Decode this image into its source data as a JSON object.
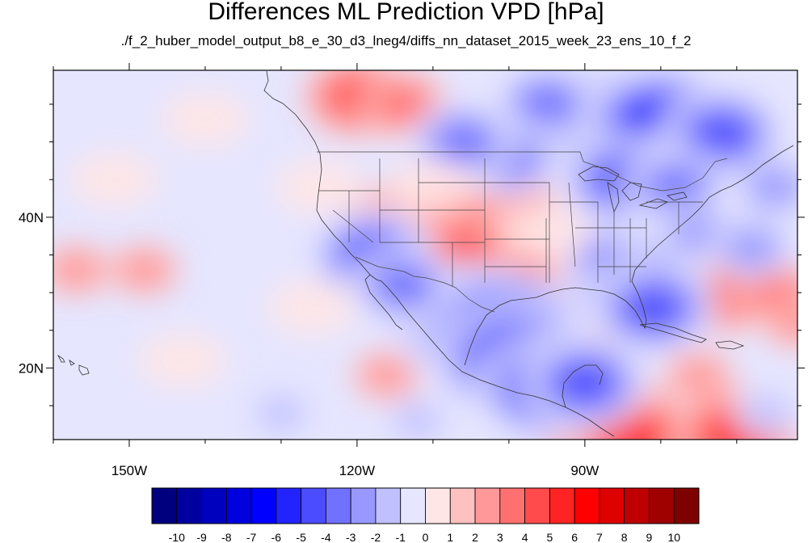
{
  "title": "Differences ML Prediction VPD [hPa]",
  "subtitle": "./f_2_huber_model_output_b8_e_30_d3_lneg4/diffs_nn_dataset_2015_week_23_ens_10_f_2",
  "map": {
    "lon_range": [
      -160,
      -62
    ],
    "lat_range": [
      10.5,
      59.5
    ],
    "lon_ticks": [
      {
        "value": -150,
        "label": "150W"
      },
      {
        "value": -120,
        "label": "120W"
      },
      {
        "value": -90,
        "label": "90W"
      }
    ],
    "lat_ticks": [
      {
        "value": 40,
        "label": "40N"
      },
      {
        "value": 20,
        "label": "20N"
      }
    ],
    "minor_lon_step": 10,
    "minor_lat_step": 5,
    "background_value": -1
  },
  "colorbar": {
    "labels": [
      "-10",
      "-9",
      "-8",
      "-7",
      "-6",
      "-5",
      "-4",
      "-3",
      "-2",
      "-1",
      "0",
      "1",
      "2",
      "3",
      "4",
      "5",
      "6",
      "7",
      "8",
      "9",
      "10"
    ],
    "colors": [
      "#00007f",
      "#00009f",
      "#0000bf",
      "#0000df",
      "#0000ff",
      "#2323ff",
      "#4b4bff",
      "#7171ff",
      "#9898ff",
      "#c0c0ff",
      "#e6e6ff",
      "#ffe6e6",
      "#ffc0c0",
      "#ff9898",
      "#ff7171",
      "#ff4b4b",
      "#ff2323",
      "#ff0000",
      "#df0000",
      "#bf0000",
      "#9f0000",
      "#7f0000"
    ]
  },
  "anomalies": [
    {
      "lon": -113,
      "lat": 37.5,
      "value": 6
    },
    {
      "lon": -108,
      "lat": 39,
      "value": 5
    },
    {
      "lon": -102,
      "lat": 32,
      "value": 6
    },
    {
      "lon": -116,
      "lat": 36,
      "value": 4
    },
    {
      "lon": -106,
      "lat": 35,
      "value": 4
    },
    {
      "lon": -120,
      "lat": 56,
      "value": 4
    },
    {
      "lon": -114,
      "lat": 55,
      "value": 3
    },
    {
      "lon": -91,
      "lat": 28,
      "value": 4
    },
    {
      "lon": -89,
      "lat": 26,
      "value": 4
    },
    {
      "lon": -72,
      "lat": 30,
      "value": 4
    },
    {
      "lon": -65,
      "lat": 30,
      "value": 3
    },
    {
      "lon": -157,
      "lat": 33,
      "value": 2
    },
    {
      "lon": -148,
      "lat": 33,
      "value": 2
    },
    {
      "lon": -98,
      "lat": 42,
      "value": 2
    },
    {
      "lon": -116,
      "lat": 19,
      "value": 2
    },
    {
      "lon": -99,
      "lat": 20,
      "value": 2
    },
    {
      "lon": -87,
      "lat": 12.5,
      "value": 6
    },
    {
      "lon": -84,
      "lat": 11,
      "value": 5
    },
    {
      "lon": -62,
      "lat": 26,
      "value": 2
    },
    {
      "lon": -75,
      "lat": 19,
      "value": 2
    },
    {
      "lon": -70,
      "lat": 11,
      "value": 5
    },
    {
      "lon": -88,
      "lat": 53,
      "value": -6
    },
    {
      "lon": -80,
      "lat": 52,
      "value": -7
    },
    {
      "lon": -72,
      "lat": 51,
      "value": -5
    },
    {
      "lon": -95,
      "lat": 55,
      "value": -4
    },
    {
      "lon": -100,
      "lat": 48,
      "value": -4
    },
    {
      "lon": -106,
      "lat": 50,
      "value": -4
    },
    {
      "lon": -85,
      "lat": 45,
      "value": -5
    },
    {
      "lon": -78,
      "lat": 44,
      "value": -4
    },
    {
      "lon": -105,
      "lat": 26,
      "value": -7
    },
    {
      "lon": -101,
      "lat": 24,
      "value": -8
    },
    {
      "lon": -99,
      "lat": 21,
      "value": -7
    },
    {
      "lon": -95,
      "lat": 17.5,
      "value": -6
    },
    {
      "lon": -90,
      "lat": 18,
      "value": -5
    },
    {
      "lon": -118,
      "lat": 35,
      "value": -5
    },
    {
      "lon": -114,
      "lat": 31,
      "value": -4
    },
    {
      "lon": -83,
      "lat": 31,
      "value": -6
    },
    {
      "lon": -81,
      "lat": 28,
      "value": -5
    },
    {
      "lon": -88,
      "lat": 35,
      "value": -3
    },
    {
      "lon": -75,
      "lat": 38,
      "value": -3
    },
    {
      "lon": -68,
      "lat": 36,
      "value": -3
    },
    {
      "lon": -65,
      "lat": 44,
      "value": -3
    },
    {
      "lon": -130,
      "lat": 14,
      "value": -2
    },
    {
      "lon": -112,
      "lat": 13,
      "value": -2
    },
    {
      "lon": -66,
      "lat": 14,
      "value": -2
    },
    {
      "lon": -152,
      "lat": 45,
      "value": 0
    },
    {
      "lon": -140,
      "lat": 53,
      "value": 0
    },
    {
      "lon": -125,
      "lat": 44,
      "value": 0
    },
    {
      "lon": -143,
      "lat": 21,
      "value": 0
    },
    {
      "lon": -126,
      "lat": 28,
      "value": 0
    },
    {
      "lon": -110,
      "lat": 44,
      "value": 0
    },
    {
      "lon": -95,
      "lat": 38,
      "value": 0
    }
  ]
}
